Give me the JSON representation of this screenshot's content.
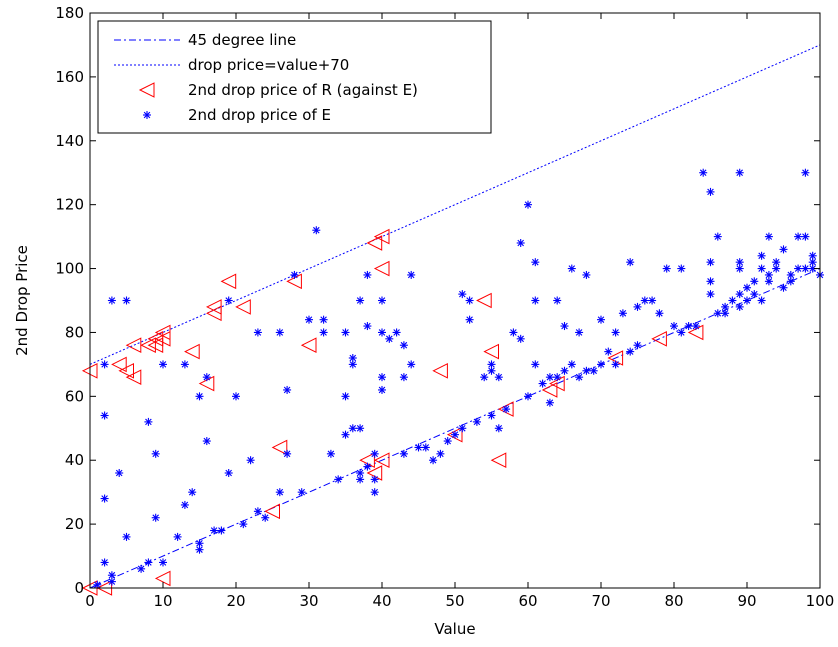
{
  "chart_data": {
    "type": "scatter",
    "xlabel": "Value",
    "ylabel": "2nd Drop Price",
    "xlim": [
      0,
      100
    ],
    "ylim": [
      0,
      180
    ],
    "xticks": [
      0,
      10,
      20,
      30,
      40,
      50,
      60,
      70,
      80,
      90,
      100
    ],
    "yticks": [
      0,
      20,
      40,
      60,
      80,
      100,
      120,
      140,
      160,
      180
    ],
    "legend_position": "top-left",
    "series": [
      {
        "name": "45 degree line",
        "kind": "line",
        "style": "dash-dot",
        "color": "#0000ff",
        "points": [
          [
            0,
            0
          ],
          [
            100,
            100
          ]
        ]
      },
      {
        "name": "drop price=value+70",
        "kind": "line",
        "style": "dotted",
        "color": "#0000ff",
        "points": [
          [
            0,
            70
          ],
          [
            100,
            170
          ]
        ]
      },
      {
        "name": "2nd drop price of R (against E)",
        "kind": "scatter",
        "marker": "triangle-left",
        "color": "#ff0000",
        "points": [
          [
            0,
            68
          ],
          [
            0,
            0
          ],
          [
            2,
            0
          ],
          [
            4,
            70
          ],
          [
            5,
            68
          ],
          [
            6,
            66
          ],
          [
            6,
            76
          ],
          [
            8,
            76
          ],
          [
            9,
            78
          ],
          [
            9,
            76
          ],
          [
            10,
            78
          ],
          [
            10,
            80
          ],
          [
            10,
            3
          ],
          [
            14,
            74
          ],
          [
            16,
            64
          ],
          [
            17,
            86
          ],
          [
            17,
            88
          ],
          [
            19,
            96
          ],
          [
            21,
            88
          ],
          [
            25,
            24
          ],
          [
            26,
            44
          ],
          [
            28,
            96
          ],
          [
            30,
            76
          ],
          [
            38,
            40
          ],
          [
            39,
            36
          ],
          [
            39,
            108
          ],
          [
            40,
            110
          ],
          [
            40,
            100
          ],
          [
            40,
            40
          ],
          [
            48,
            68
          ],
          [
            50,
            48
          ],
          [
            54,
            90
          ],
          [
            55,
            74
          ],
          [
            56,
            40
          ],
          [
            57,
            56
          ],
          [
            63,
            62
          ],
          [
            64,
            64
          ],
          [
            72,
            72
          ],
          [
            78,
            78
          ],
          [
            83,
            80
          ]
        ]
      },
      {
        "name": "2nd drop price of E",
        "kind": "scatter",
        "marker": "asterisk",
        "color": "#0000ff",
        "points": [
          [
            1,
            1
          ],
          [
            2,
            8
          ],
          [
            2,
            28
          ],
          [
            2,
            54
          ],
          [
            2,
            70
          ],
          [
            3,
            2
          ],
          [
            3,
            4
          ],
          [
            3,
            90
          ],
          [
            4,
            36
          ],
          [
            5,
            90
          ],
          [
            5,
            16
          ],
          [
            7,
            6
          ],
          [
            8,
            8
          ],
          [
            8,
            52
          ],
          [
            9,
            42
          ],
          [
            9,
            22
          ],
          [
            10,
            70
          ],
          [
            10,
            8
          ],
          [
            12,
            16
          ],
          [
            13,
            26
          ],
          [
            13,
            70
          ],
          [
            14,
            30
          ],
          [
            15,
            12
          ],
          [
            15,
            14
          ],
          [
            15,
            60
          ],
          [
            16,
            46
          ],
          [
            16,
            66
          ],
          [
            17,
            18
          ],
          [
            18,
            18
          ],
          [
            19,
            36
          ],
          [
            19,
            90
          ],
          [
            20,
            60
          ],
          [
            21,
            20
          ],
          [
            22,
            40
          ],
          [
            23,
            24
          ],
          [
            23,
            80
          ],
          [
            24,
            22
          ],
          [
            26,
            30
          ],
          [
            26,
            80
          ],
          [
            27,
            62
          ],
          [
            27,
            42
          ],
          [
            28,
            98
          ],
          [
            29,
            30
          ],
          [
            30,
            84
          ],
          [
            31,
            112
          ],
          [
            32,
            84
          ],
          [
            32,
            80
          ],
          [
            33,
            42
          ],
          [
            34,
            34
          ],
          [
            35,
            48
          ],
          [
            35,
            80
          ],
          [
            35,
            60
          ],
          [
            36,
            50
          ],
          [
            36,
            72
          ],
          [
            36,
            70
          ],
          [
            37,
            90
          ],
          [
            37,
            50
          ],
          [
            37,
            36
          ],
          [
            37,
            34
          ],
          [
            38,
            98
          ],
          [
            38,
            82
          ],
          [
            38,
            38
          ],
          [
            39,
            30
          ],
          [
            39,
            34
          ],
          [
            39,
            42
          ],
          [
            40,
            62
          ],
          [
            40,
            66
          ],
          [
            40,
            80
          ],
          [
            40,
            90
          ],
          [
            41,
            78
          ],
          [
            42,
            80
          ],
          [
            43,
            42
          ],
          [
            43,
            66
          ],
          [
            43,
            76
          ],
          [
            44,
            98
          ],
          [
            44,
            70
          ],
          [
            45,
            44
          ],
          [
            46,
            44
          ],
          [
            47,
            40
          ],
          [
            48,
            42
          ],
          [
            49,
            46
          ],
          [
            50,
            48
          ],
          [
            51,
            50
          ],
          [
            51,
            92
          ],
          [
            52,
            84
          ],
          [
            52,
            90
          ],
          [
            53,
            52
          ],
          [
            54,
            66
          ],
          [
            55,
            54
          ],
          [
            55,
            68
          ],
          [
            55,
            70
          ],
          [
            56,
            50
          ],
          [
            56,
            66
          ],
          [
            57,
            56
          ],
          [
            58,
            80
          ],
          [
            59,
            108
          ],
          [
            59,
            78
          ],
          [
            60,
            120
          ],
          [
            60,
            60
          ],
          [
            61,
            90
          ],
          [
            61,
            102
          ],
          [
            61,
            70
          ],
          [
            62,
            64
          ],
          [
            63,
            58
          ],
          [
            63,
            66
          ],
          [
            64,
            90
          ],
          [
            64,
            66
          ],
          [
            65,
            68
          ],
          [
            65,
            82
          ],
          [
            66,
            100
          ],
          [
            66,
            70
          ],
          [
            67,
            80
          ],
          [
            67,
            66
          ],
          [
            68,
            98
          ],
          [
            68,
            68
          ],
          [
            69,
            68
          ],
          [
            70,
            84
          ],
          [
            70,
            70
          ],
          [
            71,
            74
          ],
          [
            72,
            70
          ],
          [
            72,
            80
          ],
          [
            73,
            86
          ],
          [
            74,
            102
          ],
          [
            74,
            74
          ],
          [
            75,
            88
          ],
          [
            75,
            76
          ],
          [
            76,
            90
          ],
          [
            77,
            90
          ],
          [
            78,
            86
          ],
          [
            79,
            100
          ],
          [
            80,
            82
          ],
          [
            81,
            100
          ],
          [
            81,
            80
          ],
          [
            82,
            82
          ],
          [
            83,
            82
          ],
          [
            84,
            130
          ],
          [
            85,
            124
          ],
          [
            85,
            102
          ],
          [
            85,
            96
          ],
          [
            85,
            92
          ],
          [
            86,
            110
          ],
          [
            86,
            86
          ],
          [
            87,
            88
          ],
          [
            87,
            86
          ],
          [
            88,
            90
          ],
          [
            89,
            130
          ],
          [
            89,
            102
          ],
          [
            89,
            100
          ],
          [
            89,
            92
          ],
          [
            89,
            88
          ],
          [
            90,
            94
          ],
          [
            90,
            90
          ],
          [
            91,
            92
          ],
          [
            91,
            96
          ],
          [
            92,
            100
          ],
          [
            92,
            104
          ],
          [
            92,
            90
          ],
          [
            93,
            110
          ],
          [
            93,
            96
          ],
          [
            93,
            98
          ],
          [
            94,
            102
          ],
          [
            94,
            100
          ],
          [
            95,
            94
          ],
          [
            95,
            106
          ],
          [
            96,
            96
          ],
          [
            96,
            98
          ],
          [
            97,
            110
          ],
          [
            97,
            100
          ],
          [
            98,
            130
          ],
          [
            98,
            110
          ],
          [
            98,
            100
          ],
          [
            99,
            104
          ],
          [
            99,
            102
          ],
          [
            99,
            100
          ],
          [
            100,
            98
          ]
        ]
      }
    ]
  }
}
